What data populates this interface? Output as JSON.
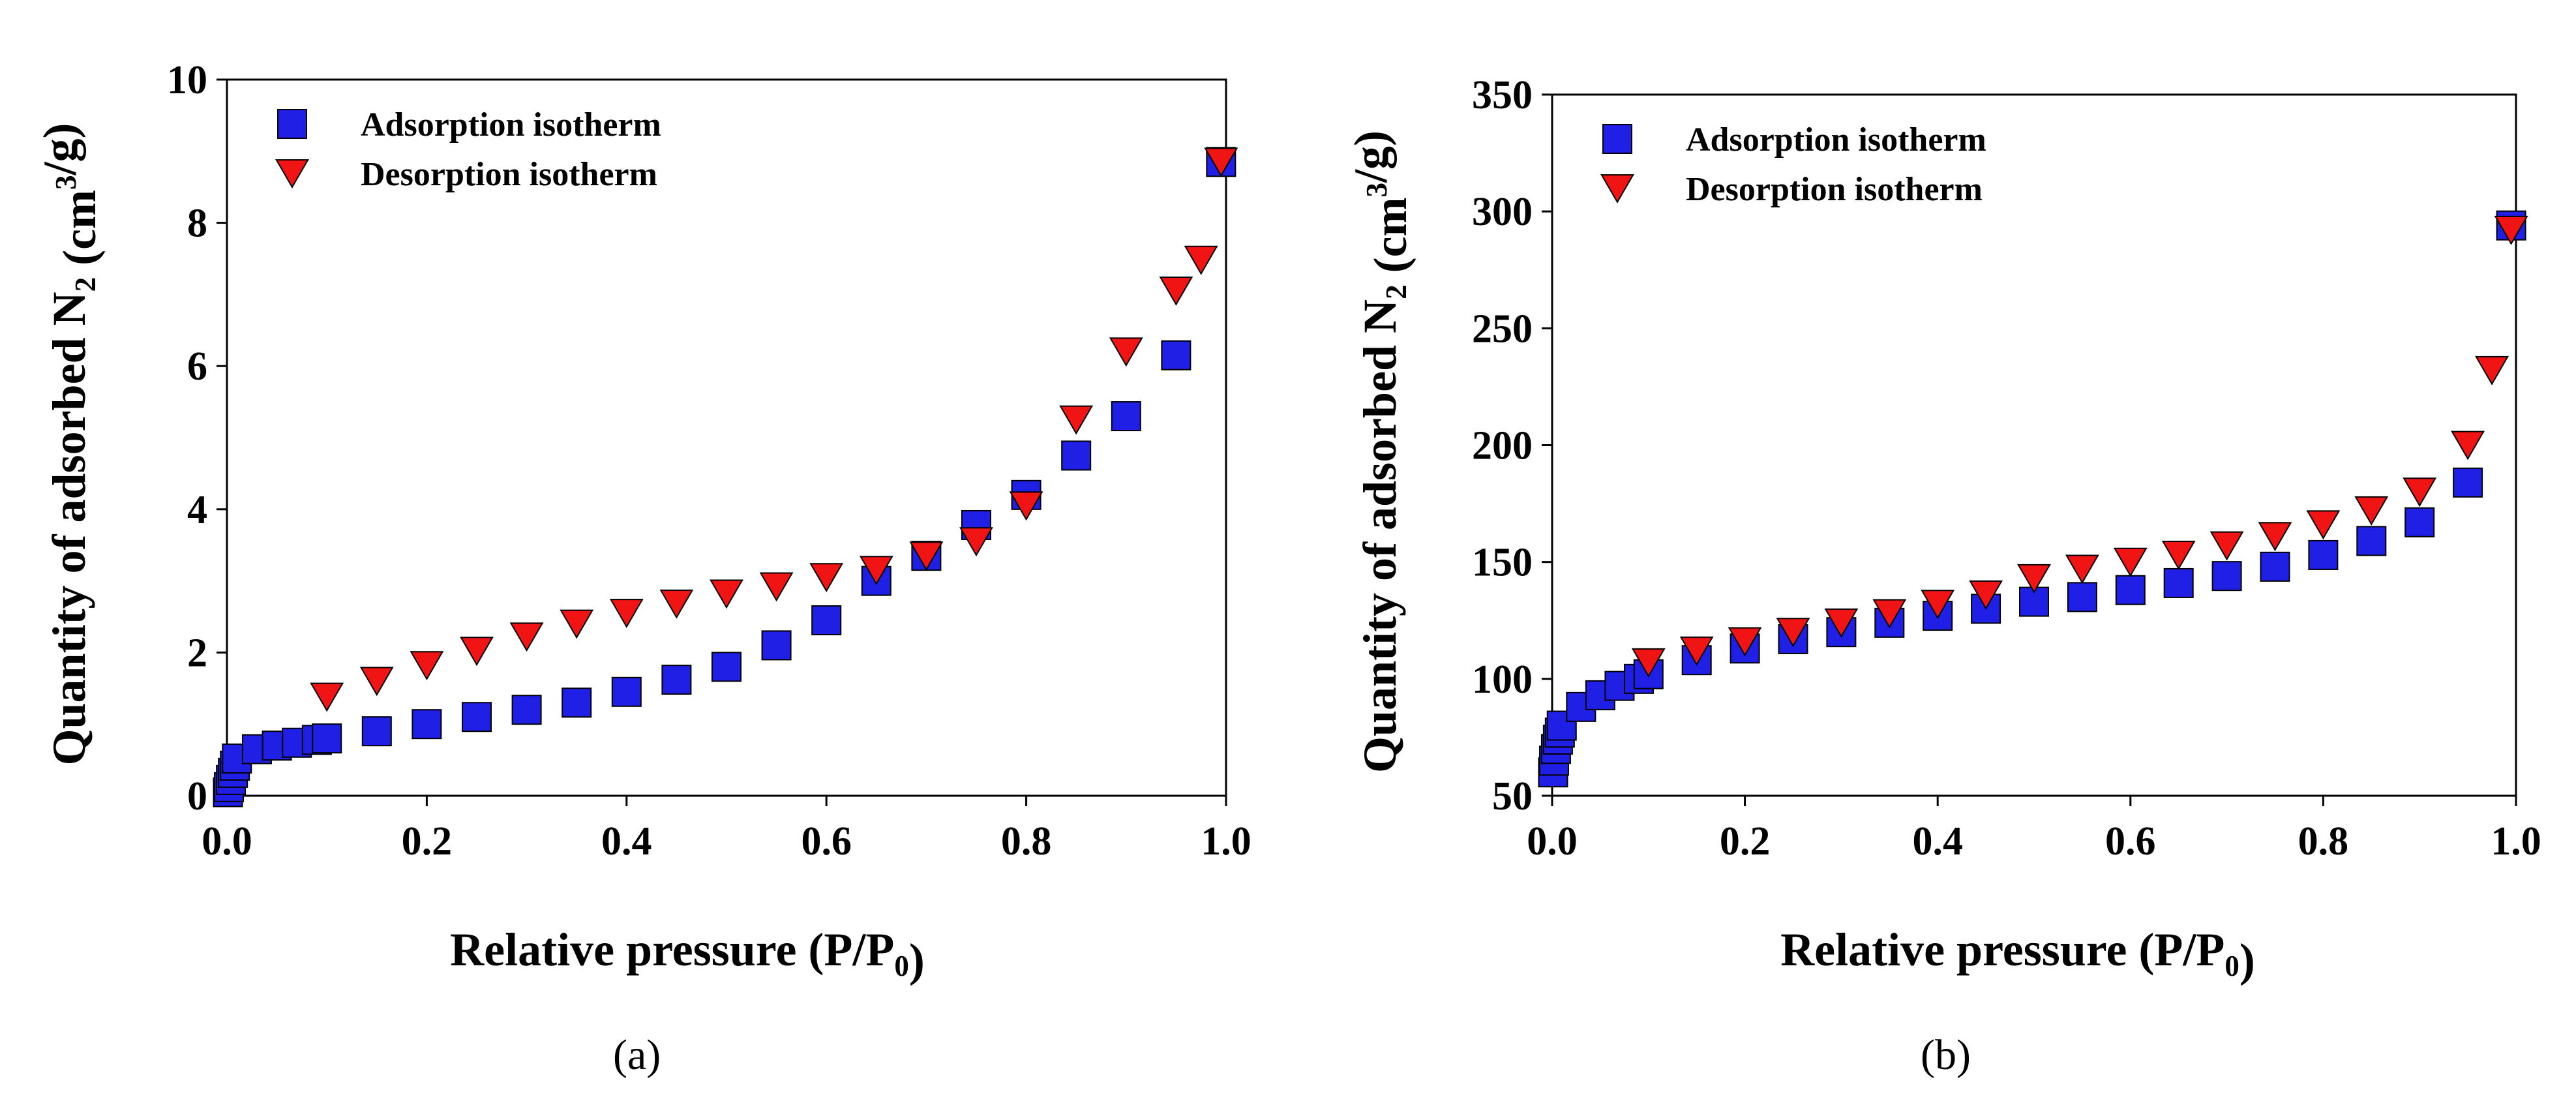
{
  "figure": {
    "panel_labels": [
      "(a)",
      "(b)"
    ]
  },
  "colors": {
    "adsorption": "#1f1fe6",
    "desorption": "#f01414",
    "axis": "#000000"
  },
  "chart_data": [
    {
      "type": "scatter",
      "panel": "(a)",
      "title": "",
      "xlabel": "Relative pressure (P/P0)",
      "ylabel": "Quantity of adsorbed N2 (cm3/g)",
      "xlim": [
        0,
        1.0
      ],
      "ylim": [
        0,
        10
      ],
      "xticks": [
        "0.0",
        "0.2",
        "0.4",
        "0.6",
        "0.8",
        "1.0"
      ],
      "yticks": [
        "0",
        "2",
        "4",
        "6",
        "8",
        "10"
      ],
      "legend": "top-left",
      "grid": false,
      "series": [
        {
          "name": "Adsorption isotherm",
          "marker": "square",
          "x": [
            0.001,
            0.002,
            0.004,
            0.006,
            0.008,
            0.01,
            0.03,
            0.05,
            0.07,
            0.09,
            0.1,
            0.15,
            0.2,
            0.25,
            0.3,
            0.35,
            0.4,
            0.45,
            0.5,
            0.55,
            0.6,
            0.65,
            0.7,
            0.75,
            0.8,
            0.85,
            0.9,
            0.95,
            0.995
          ],
          "y": [
            0.05,
            0.12,
            0.22,
            0.32,
            0.42,
            0.52,
            0.65,
            0.7,
            0.74,
            0.78,
            0.8,
            0.9,
            1.0,
            1.1,
            1.2,
            1.3,
            1.45,
            1.62,
            1.8,
            2.1,
            2.45,
            3.0,
            3.35,
            3.78,
            4.2,
            4.75,
            5.3,
            6.15,
            8.85
          ]
        },
        {
          "name": "Desorption isotherm",
          "marker": "triangle-down",
          "x": [
            0.1,
            0.15,
            0.2,
            0.25,
            0.3,
            0.35,
            0.4,
            0.45,
            0.5,
            0.55,
            0.6,
            0.65,
            0.7,
            0.75,
            0.8,
            0.85,
            0.9,
            0.95,
            0.975,
            0.995
          ],
          "y": [
            1.38,
            1.6,
            1.82,
            2.02,
            2.22,
            2.4,
            2.55,
            2.68,
            2.82,
            2.92,
            3.05,
            3.15,
            3.35,
            3.55,
            4.05,
            5.25,
            6.2,
            7.05,
            7.48,
            8.85
          ]
        }
      ]
    },
    {
      "type": "scatter",
      "panel": "(b)",
      "title": "",
      "xlabel": "Relative pressure (P/P0)",
      "ylabel": "Quantity of adsorbed N2 (cm3/g)",
      "xlim": [
        0,
        1.0
      ],
      "ylim": [
        50,
        350
      ],
      "xticks": [
        "0.0",
        "0.2",
        "0.4",
        "0.6",
        "0.8",
        "1.0"
      ],
      "yticks": [
        "50",
        "100",
        "150",
        "200",
        "250",
        "300",
        "350"
      ],
      "legend": "top-left",
      "grid": false,
      "series": [
        {
          "name": "Adsorption isotherm",
          "marker": "square",
          "x": [
            0.001,
            0.002,
            0.004,
            0.006,
            0.008,
            0.01,
            0.03,
            0.05,
            0.07,
            0.09,
            0.1,
            0.15,
            0.2,
            0.25,
            0.3,
            0.35,
            0.4,
            0.45,
            0.5,
            0.55,
            0.6,
            0.65,
            0.7,
            0.75,
            0.8,
            0.85,
            0.9,
            0.95,
            0.995
          ],
          "y": [
            60,
            65,
            70,
            74,
            77,
            80,
            88,
            93,
            97,
            100,
            102,
            108,
            113,
            117,
            120,
            124,
            127,
            130,
            133,
            135,
            138,
            141,
            144,
            148,
            153,
            159,
            167,
            184,
            294
          ]
        },
        {
          "name": "Desorption isotherm",
          "marker": "triangle-down",
          "x": [
            0.1,
            0.15,
            0.2,
            0.25,
            0.3,
            0.35,
            0.4,
            0.45,
            0.5,
            0.55,
            0.6,
            0.65,
            0.7,
            0.75,
            0.8,
            0.85,
            0.9,
            0.95,
            0.975,
            0.995
          ],
          "y": [
            107,
            112,
            116,
            120,
            124,
            128,
            132,
            136,
            143,
            147,
            150,
            153,
            157,
            161,
            166,
            172,
            180,
            200,
            232,
            292
          ]
        }
      ]
    }
  ]
}
